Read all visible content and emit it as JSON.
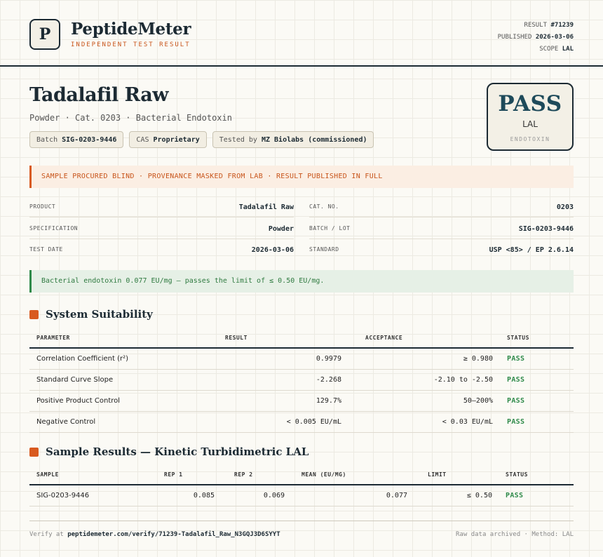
{
  "brand": {
    "logo_letter": "P",
    "name": "PeptideMeter",
    "tagline": "INDEPENDENT TEST RESULT"
  },
  "meta": {
    "result_label": "RESULT",
    "result_value": "#71239",
    "published_label": "PUBLISHED",
    "published_value": "2026-03-06",
    "scope_label": "SCOPE",
    "scope_value": "LAL"
  },
  "product": {
    "title": "Tadalafil Raw",
    "subtitle": "Powder · Cat. 0203 · Bacterial Endotoxin",
    "chips": [
      {
        "label": "Batch",
        "value": "SIG-0203-9446"
      },
      {
        "label": "CAS",
        "value": "Proprietary"
      },
      {
        "label": "Tested by",
        "value": "MZ Biolabs (commissioned)"
      }
    ]
  },
  "verdict_card": {
    "result": "PASS",
    "scope": "LAL",
    "type": "ENDOTOXIN"
  },
  "banner": "SAMPLE PROCURED BLIND · PROVENANCE MASKED FROM LAB · RESULT PUBLISHED IN FULL",
  "details": {
    "product_label": "PRODUCT",
    "product_value": "Tadalafil Raw",
    "cat_label": "CAT. NO.",
    "cat_value": "0203",
    "spec_label": "SPECIFICATION",
    "spec_value": "Powder",
    "batch_label": "BATCH / LOT",
    "batch_value": "SIG-0203-9446",
    "date_label": "TEST DATE",
    "date_value": "2026-03-06",
    "standard_label": "STANDARD",
    "standard_value": "USP <85> / EP 2.6.14"
  },
  "verdict_text": "Bacterial endotoxin 0.077 EU/mg — passes the limit of ≤ 0.50 EU/mg.",
  "suitability": {
    "title": "System Suitability",
    "headers": [
      "PARAMETER",
      "RESULT",
      "ACCEPTANCE",
      "STATUS"
    ],
    "rows": [
      {
        "param": "Correlation Coefficient (r²)",
        "result": "0.9979",
        "acceptance": "≥ 0.980",
        "status": "PASS"
      },
      {
        "param": "Standard Curve Slope",
        "result": "-2.268",
        "acceptance": "-2.10 to -2.50",
        "status": "PASS"
      },
      {
        "param": "Positive Product Control",
        "result": "129.7%",
        "acceptance": "50–200%",
        "status": "PASS"
      },
      {
        "param": "Negative Control",
        "result": "< 0.005 EU/mL",
        "acceptance": "< 0.03 EU/mL",
        "status": "PASS"
      }
    ]
  },
  "samples": {
    "title": "Sample Results — Kinetic Turbidimetric LAL",
    "headers": [
      "SAMPLE",
      "REP 1",
      "REP 2",
      "MEAN (EU/MG)",
      "LIMIT",
      "STATUS"
    ],
    "rows": [
      {
        "sample": "SIG-0203-9446",
        "rep1": "0.085",
        "rep2": "0.069",
        "mean": "0.077",
        "limit": "≤ 0.50",
        "status": "PASS"
      }
    ]
  },
  "footer": {
    "verify_prefix": "Verify at",
    "verify_url": "peptidemeter.com/verify/71239-Tadalafil_Raw_N3GQJ3D6SYYT",
    "archived": "Raw data archived · Method: LAL"
  },
  "colors": {
    "ink": "#1c2a33",
    "accent": "#d85a1f",
    "pass": "#2f8a4a",
    "pass_title": "#1e4a5a"
  }
}
